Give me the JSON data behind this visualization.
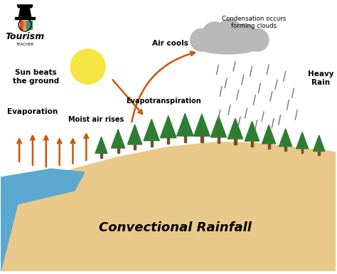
{
  "title": "Convectional Rainfall",
  "background_color": "#ffffff",
  "ground_color": "#E8C98A",
  "water_color": "#5BA8D0",
  "tree_trunk_color": "#7B4A2D",
  "tree_canopy_color": "#2E7D32",
  "sun_color": "#F5E642",
  "cloud_color": "#B8B8B8",
  "arrow_color": "#CC5500",
  "rain_color": "#808080",
  "evap_arrow_color": "#CC5500",
  "labels": {
    "sun_beats": "Sun beats\nthe ground",
    "evaporation": "Evaporation",
    "moist_air": "Moist air rises",
    "air_cools": "Air cools",
    "evapotranspiration": "Evapotranspiration",
    "condensation": "Condensation occurs\nforming clouds",
    "heavy_rain": "Heavy\nRain",
    "main_title": "Convectional Rainfall",
    "tourism": "Tourism",
    "teacher": "TEACHER"
  }
}
